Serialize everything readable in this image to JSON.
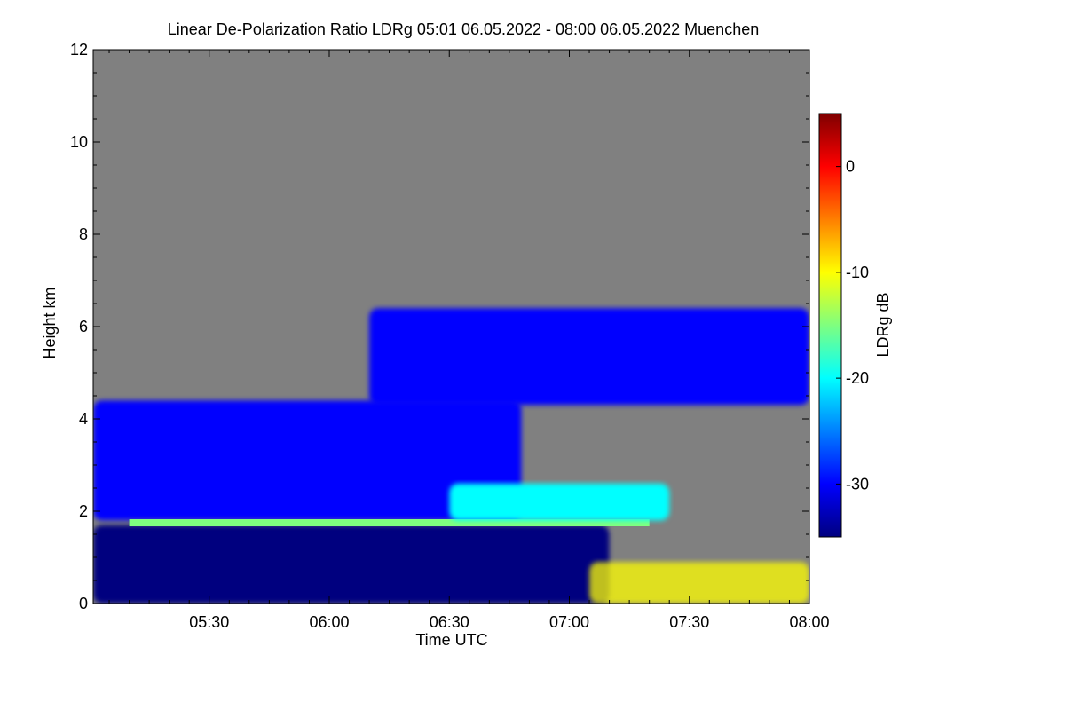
{
  "chart_data": {
    "type": "heatmap",
    "title": "Linear De-Polarization Ratio LDRg   05:01 06.05.2022 - 08:00 06.05.2022 Muenchen",
    "xlabel": "Time UTC",
    "ylabel": "Height km",
    "colorbar_label": "LDRg dB",
    "x_range": [
      "05:01",
      "08:00"
    ],
    "x_ticks": [
      "05:30",
      "06:00",
      "06:30",
      "07:00",
      "07:30",
      "08:00"
    ],
    "y_range": [
      0,
      12
    ],
    "y_ticks": [
      0,
      2,
      4,
      6,
      8,
      10,
      12
    ],
    "colorbar_range": [
      -35,
      5
    ],
    "colorbar_ticks": [
      0,
      -10,
      -20,
      -30
    ],
    "background_color": "#808080",
    "colormap": [
      "#00007f",
      "#0000ff",
      "#007fff",
      "#00ffff",
      "#7fff7f",
      "#ffff00",
      "#ff7f00",
      "#ff0000",
      "#7f0000"
    ],
    "features": [
      {
        "type": "cloud",
        "t_start": "05:01",
        "t_end": "06:48",
        "h_bottom": 1.8,
        "h_top": 4.4,
        "ldr": -29
      },
      {
        "type": "precipitation",
        "t_start": "05:01",
        "t_end": "07:10",
        "h_bottom": 0,
        "h_top": 1.7,
        "ldr": -33
      },
      {
        "type": "melting_layer",
        "t_start": "05:10",
        "t_end": "07:20",
        "h": 1.75,
        "ldr": -16
      },
      {
        "type": "cloud",
        "t_start": "06:10",
        "t_end": "08:00",
        "h_bottom": 4.3,
        "h_top": 6.4,
        "ldr": -28
      },
      {
        "type": "melting_region",
        "t_start": "06:30",
        "t_end": "07:25",
        "h_bottom": 1.8,
        "h_top": 2.6,
        "ldr": -21
      },
      {
        "type": "aerosol",
        "t_start": "07:05",
        "t_end": "08:00",
        "h_bottom": 0,
        "h_top": 0.9,
        "ldr": -10
      }
    ]
  }
}
